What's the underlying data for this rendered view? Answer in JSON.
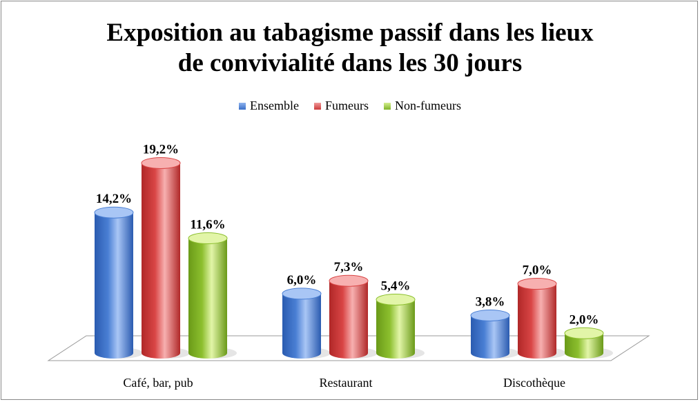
{
  "chart_data": {
    "type": "bar",
    "title_lines": [
      "Exposition au tabagisme passif dans les lieux",
      "de convivialité dans les 30 jours"
    ],
    "categories": [
      "Café, bar, pub",
      "Restaurant",
      "Discothèque"
    ],
    "series": [
      {
        "name": "Ensemble",
        "color": "#4a7fd4",
        "values": [
          14.2,
          6.0,
          3.8
        ],
        "labels": [
          "14,2%",
          "6,0%",
          "3,8%"
        ]
      },
      {
        "name": "Fumeurs",
        "color": "#d94545",
        "values": [
          19.2,
          7.3,
          7.0
        ],
        "labels": [
          "19,2%",
          "7,3%",
          "7,0%"
        ]
      },
      {
        "name": "Non-fumeurs",
        "color": "#8cbf2e",
        "values": [
          11.6,
          5.4,
          2.0
        ],
        "labels": [
          "11,6%",
          "5,4%",
          "2,0%"
        ]
      }
    ],
    "legend_position": "top",
    "grid": false,
    "style": "3d-cylinder"
  }
}
